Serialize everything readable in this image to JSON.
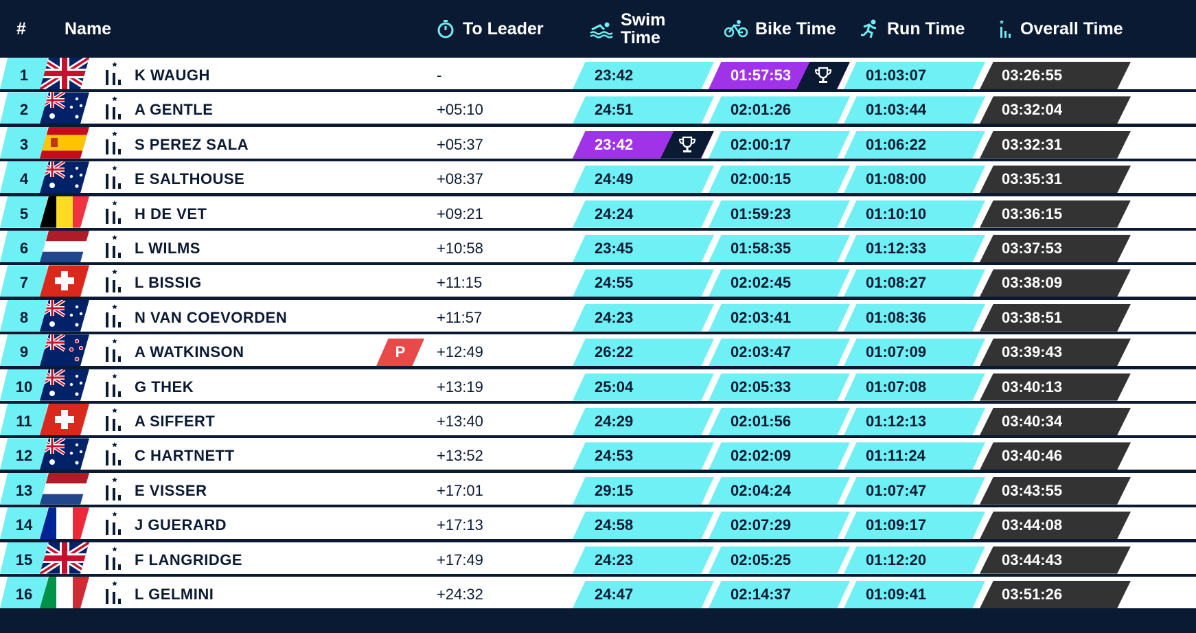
{
  "header": {
    "rank": "#",
    "name": "Name",
    "to_leader": "To Leader",
    "swim_line1": "Swim",
    "swim_line2": "Time",
    "bike": "Bike Time",
    "run": "Run Time",
    "overall": "Overall Time",
    "icons": [
      "stopwatch-icon",
      "swim-icon",
      "bike-icon",
      "run-icon",
      "stats-icon"
    ]
  },
  "colors": {
    "background": "#0b1a33",
    "accent": "#6ff0f5",
    "best": "#a033e8",
    "overall": "#333333",
    "penalty": "#e84a4a"
  },
  "rows": [
    {
      "rank": "1",
      "country": "gbr",
      "name": "K WAUGH",
      "to_leader": "-",
      "swim": "23:42",
      "bike": "01:57:53",
      "run": "01:03:07",
      "overall": "03:26:55",
      "best": "bike",
      "penalty": ""
    },
    {
      "rank": "2",
      "country": "aus",
      "name": "A GENTLE",
      "to_leader": "+05:10",
      "swim": "24:51",
      "bike": "02:01:26",
      "run": "01:03:44",
      "overall": "03:32:04",
      "best": "",
      "penalty": ""
    },
    {
      "rank": "3",
      "country": "esp",
      "name": "S PEREZ SALA",
      "to_leader": "+05:37",
      "swim": "23:42",
      "bike": "02:00:17",
      "run": "01:06:22",
      "overall": "03:32:31",
      "best": "swim",
      "penalty": ""
    },
    {
      "rank": "4",
      "country": "aus",
      "name": "E SALTHOUSE",
      "to_leader": "+08:37",
      "swim": "24:49",
      "bike": "02:00:15",
      "run": "01:08:00",
      "overall": "03:35:31",
      "best": "",
      "penalty": ""
    },
    {
      "rank": "5",
      "country": "bel",
      "name": "H DE VET",
      "to_leader": "+09:21",
      "swim": "24:24",
      "bike": "01:59:23",
      "run": "01:10:10",
      "overall": "03:36:15",
      "best": "",
      "penalty": ""
    },
    {
      "rank": "6",
      "country": "ned",
      "name": "L WILMS",
      "to_leader": "+10:58",
      "swim": "23:45",
      "bike": "01:58:35",
      "run": "01:12:33",
      "overall": "03:37:53",
      "best": "",
      "penalty": ""
    },
    {
      "rank": "7",
      "country": "sui",
      "name": "L BISSIG",
      "to_leader": "+11:15",
      "swim": "24:55",
      "bike": "02:02:45",
      "run": "01:08:27",
      "overall": "03:38:09",
      "best": "",
      "penalty": ""
    },
    {
      "rank": "8",
      "country": "aus",
      "name": "N VAN COEVORDEN",
      "to_leader": "+11:57",
      "swim": "24:23",
      "bike": "02:03:41",
      "run": "01:08:36",
      "overall": "03:38:51",
      "best": "",
      "penalty": ""
    },
    {
      "rank": "9",
      "country": "nzl",
      "name": "A WATKINSON",
      "to_leader": "+12:49",
      "swim": "26:22",
      "bike": "02:03:47",
      "run": "01:07:09",
      "overall": "03:39:43",
      "best": "",
      "penalty": "P"
    },
    {
      "rank": "10",
      "country": "aus",
      "name": "G THEK",
      "to_leader": "+13:19",
      "swim": "25:04",
      "bike": "02:05:33",
      "run": "01:07:08",
      "overall": "03:40:13",
      "best": "",
      "penalty": ""
    },
    {
      "rank": "11",
      "country": "sui",
      "name": "A SIFFERT",
      "to_leader": "+13:40",
      "swim": "24:29",
      "bike": "02:01:56",
      "run": "01:12:13",
      "overall": "03:40:34",
      "best": "",
      "penalty": ""
    },
    {
      "rank": "12",
      "country": "aus",
      "name": "C HARTNETT",
      "to_leader": "+13:52",
      "swim": "24:53",
      "bike": "02:02:09",
      "run": "01:11:24",
      "overall": "03:40:46",
      "best": "",
      "penalty": ""
    },
    {
      "rank": "13",
      "country": "ned",
      "name": "E VISSER",
      "to_leader": "+17:01",
      "swim": "29:15",
      "bike": "02:04:24",
      "run": "01:07:47",
      "overall": "03:43:55",
      "best": "",
      "penalty": ""
    },
    {
      "rank": "14",
      "country": "fra",
      "name": "J GUERARD",
      "to_leader": "+17:13",
      "swim": "24:58",
      "bike": "02:07:29",
      "run": "01:09:17",
      "overall": "03:44:08",
      "best": "",
      "penalty": ""
    },
    {
      "rank": "15",
      "country": "gbr",
      "name": "F LANGRIDGE",
      "to_leader": "+17:49",
      "swim": "24:23",
      "bike": "02:05:25",
      "run": "01:12:20",
      "overall": "03:44:43",
      "best": "",
      "penalty": ""
    },
    {
      "rank": "16",
      "country": "ita",
      "name": "L GELMINI",
      "to_leader": "+24:32",
      "swim": "24:47",
      "bike": "02:14:37",
      "run": "01:09:41",
      "overall": "03:51:26",
      "best": "",
      "penalty": ""
    }
  ]
}
